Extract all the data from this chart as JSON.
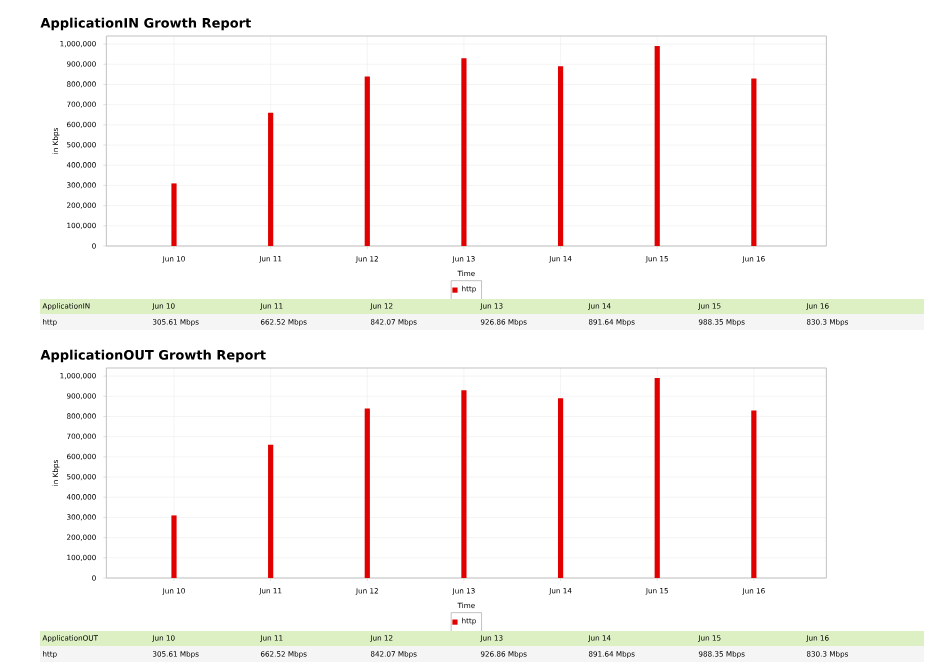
{
  "chart_data": [
    {
      "type": "bar",
      "title": "ApplicationIN Growth Report",
      "xlabel": "Time",
      "ylabel": "in Kbps",
      "categories": [
        "Jun 10",
        "Jun 11",
        "Jun 12",
        "Jun 13",
        "Jun 14",
        "Jun 15",
        "Jun 16"
      ],
      "series": [
        {
          "name": "http",
          "color": "#e00000",
          "values": [
            310000,
            660000,
            840000,
            930000,
            890000,
            990000,
            830000
          ]
        }
      ],
      "ylim": [
        0,
        1040000
      ],
      "yticks": [
        {
          "value": 0,
          "label": "0"
        },
        {
          "value": 100000,
          "label": "100,000"
        },
        {
          "value": 200000,
          "label": "200,000"
        },
        {
          "value": 300000,
          "label": "300,000"
        },
        {
          "value": 400000,
          "label": "400,000"
        },
        {
          "value": 500000,
          "label": "500,000"
        },
        {
          "value": 600000,
          "label": "600,000"
        },
        {
          "value": 700000,
          "label": "700,000"
        },
        {
          "value": 800000,
          "label": "800,000"
        },
        {
          "value": 900000,
          "label": "900,000"
        },
        {
          "value": 1000000,
          "label": "1,000,000"
        }
      ],
      "grid": true,
      "legend": "bottom",
      "annotations": [
        "ApplicationIN",
        "305.61 Mbps",
        "662.52 Mbps",
        "842.07 Mbps",
        "926.86 Mbps",
        "891.64 Mbps",
        "988.35 Mbps",
        "830.3 Mbps"
      ]
    },
    {
      "type": "bar",
      "title": "ApplicationOUT Growth Report",
      "xlabel": "Time",
      "ylabel": "in Kbps",
      "categories": [
        "Jun 10",
        "Jun 11",
        "Jun 12",
        "Jun 13",
        "Jun 14",
        "Jun 15",
        "Jun 16"
      ],
      "series": [
        {
          "name": "http",
          "color": "#e00000",
          "values": [
            310000,
            660000,
            840000,
            930000,
            890000,
            990000,
            830000
          ]
        }
      ],
      "ylim": [
        0,
        1040000
      ],
      "yticks": [
        {
          "value": 0,
          "label": "0"
        },
        {
          "value": 100000,
          "label": "100,000"
        },
        {
          "value": 200000,
          "label": "200,000"
        },
        {
          "value": 300000,
          "label": "300,000"
        },
        {
          "value": 400000,
          "label": "400,000"
        },
        {
          "value": 500000,
          "label": "500,000"
        },
        {
          "value": 600000,
          "label": "600,000"
        },
        {
          "value": 700000,
          "label": "700,000"
        },
        {
          "value": 800000,
          "label": "800,000"
        },
        {
          "value": 900000,
          "label": "900,000"
        },
        {
          "value": 1000000,
          "label": "1,000,000"
        }
      ],
      "grid": true,
      "legend": "bottom",
      "annotations": [
        "ApplicationOUT",
        "305.61 Mbps",
        "662.52 Mbps",
        "842.07 Mbps",
        "926.86 Mbps",
        "891.64 Mbps",
        "988.35 Mbps",
        "830.3 Mbps"
      ]
    }
  ]
}
